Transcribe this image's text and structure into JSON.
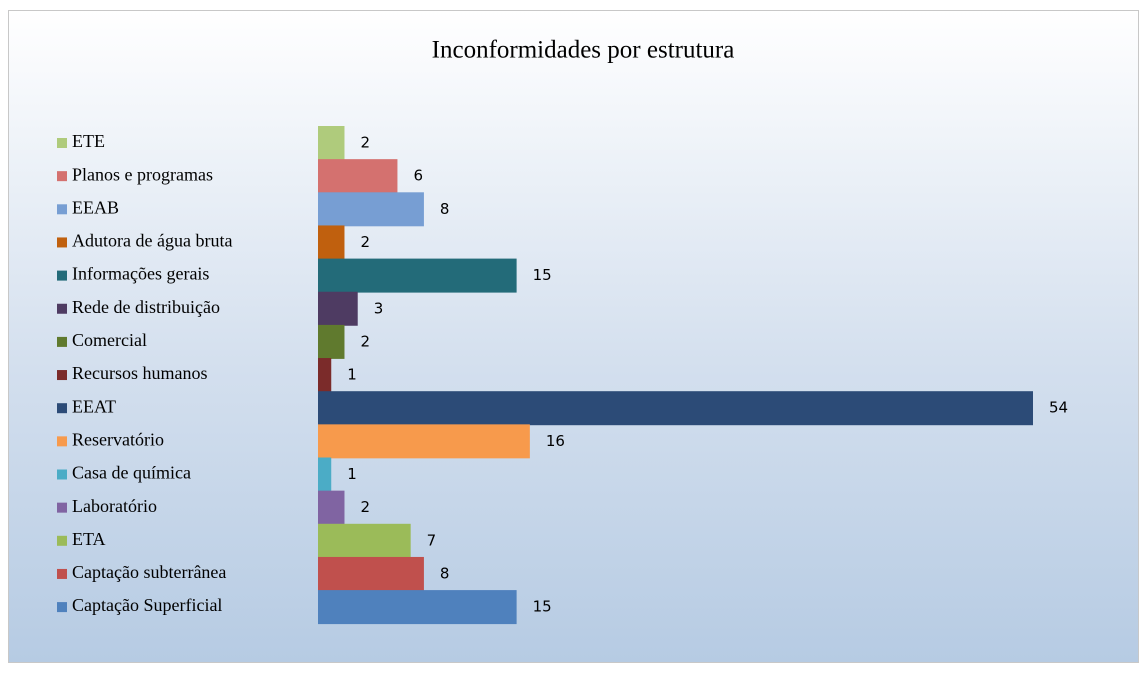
{
  "chart_data": {
    "type": "bar",
    "orientation": "horizontal",
    "title": "Inconformidades por estrutura",
    "legend": "left",
    "series": [
      {
        "name": "ETE",
        "color": "#afcb7c",
        "values": [
          2
        ]
      },
      {
        "name": "Planos e programas",
        "color": "#d4716f",
        "values": [
          6
        ]
      },
      {
        "name": "EEAB",
        "color": "#779ed3",
        "values": [
          8
        ]
      },
      {
        "name": "Adutora de água bruta",
        "color": "#c0600e",
        "values": [
          2
        ]
      },
      {
        "name": "Informações gerais",
        "color": "#236b79",
        "values": [
          15
        ]
      },
      {
        "name": "Rede de distribuição",
        "color": "#4e3b62",
        "values": [
          3
        ]
      },
      {
        "name": "Comercial",
        "color": "#607a2e",
        "values": [
          2
        ]
      },
      {
        "name": "Recursos humanos",
        "color": "#7b2b2a",
        "values": [
          1
        ]
      },
      {
        "name": "EEAT",
        "color": "#2c4b77",
        "values": [
          54
        ]
      },
      {
        "name": "Reservatório",
        "color": "#f79a4c",
        "values": [
          16
        ]
      },
      {
        "name": "Casa de química",
        "color": "#4bacc6",
        "values": [
          1
        ]
      },
      {
        "name": "Laboratório",
        "color": "#8064a2",
        "values": [
          2
        ]
      },
      {
        "name": "ETA",
        "color": "#9bbb59",
        "values": [
          7
        ]
      },
      {
        "name": "Captação subterrânea",
        "color": "#c0504d",
        "values": [
          8
        ]
      },
      {
        "name": "Captação Superficial",
        "color": "#4f81bd",
        "values": [
          15
        ]
      }
    ]
  }
}
